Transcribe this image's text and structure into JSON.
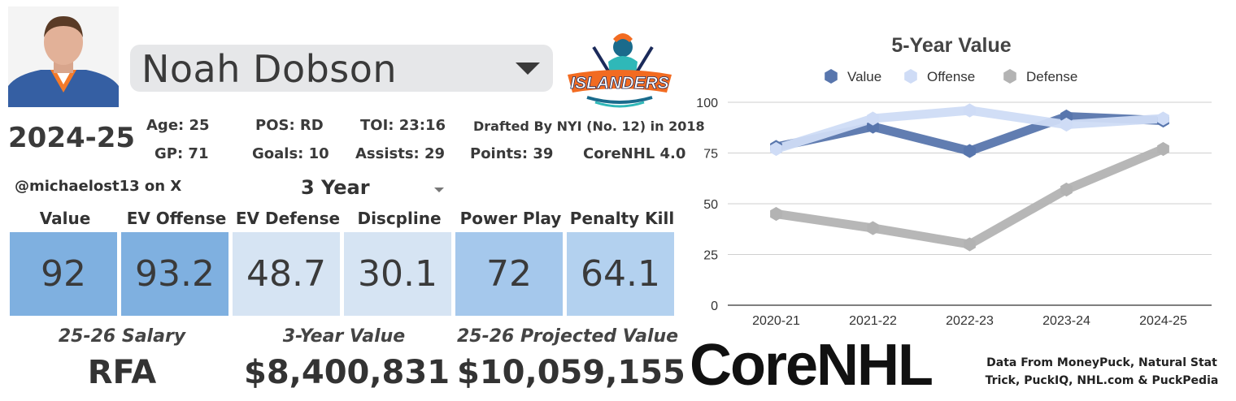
{
  "player": {
    "name": "Noah Dobson",
    "season": "2024-25",
    "stats": {
      "age": "Age: 25",
      "pos": "POS: RD",
      "toi": "TOI: 23:16",
      "drafted": "Drafted By NYI (No. 12) in 2018",
      "gp": "GP: 71",
      "goals": "Goals: 10",
      "assists": "Assists: 29",
      "points": "Points: 39",
      "version": "CoreNHL 4.0"
    }
  },
  "author": "@michaelost13 on X",
  "period": {
    "selected": "3 Year"
  },
  "team_logo": {
    "text": "ISLANDERS",
    "icon": "islanders-fisherman-logo"
  },
  "metrics": [
    {
      "label": "Value",
      "value": "92",
      "color": "#7fb0e0"
    },
    {
      "label": "EV Offense",
      "value": "93.2",
      "color": "#7fb0e0"
    },
    {
      "label": "EV Defense",
      "value": "48.7",
      "color": "#d6e4f3"
    },
    {
      "label": "Discpline",
      "value": "30.1",
      "color": "#d6e4f3"
    },
    {
      "label": "Power Play",
      "value": "72",
      "color": "#a5c8ec"
    },
    {
      "label": "Penalty Kill",
      "value": "64.1",
      "color": "#b3d1ef"
    }
  ],
  "financials": {
    "salary_label": "25-26 Salary",
    "salary_value": "RFA",
    "three_year_label": "3-Year Value",
    "three_year_value": "$8,400,831",
    "projected_label": "25-26 Projected Value",
    "projected_value": "$10,059,155"
  },
  "brand": {
    "name": "CoreNHL"
  },
  "sources": {
    "line1": "Data From MoneyPuck, Natural Stat",
    "line2": "Trick, PuckIQ, NHL.com & PuckPedia"
  },
  "chart_data": {
    "type": "line",
    "title": "5-Year Value",
    "categories": [
      "2020-21",
      "2021-22",
      "2022-23",
      "2023-24",
      "2024-25"
    ],
    "series": [
      {
        "name": "Value",
        "values": [
          78,
          88,
          76,
          93,
          91
        ],
        "color": "#5876ad"
      },
      {
        "name": "Offense",
        "values": [
          77,
          92,
          96,
          89,
          92
        ],
        "color": "#cfdcf6"
      },
      {
        "name": "Defense",
        "values": [
          45,
          38,
          30,
          57,
          77
        ],
        "color": "#b3b3b3"
      }
    ],
    "ylim": [
      0,
      100
    ],
    "yticks": [
      "0",
      "25",
      "50",
      "75",
      "100"
    ],
    "legend": "top-center",
    "grid": true
  }
}
